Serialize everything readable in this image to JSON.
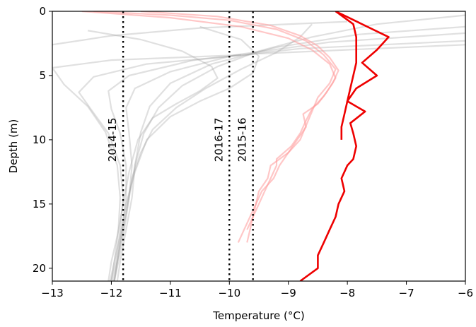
{
  "chart_data": {
    "type": "line",
    "title": "",
    "xlabel": "Temperature (°C)",
    "ylabel": "Depth (m)",
    "xlim": [
      -13,
      -6
    ],
    "ylim": [
      21,
      0
    ],
    "y_inverted": true,
    "xticks": [
      -13,
      -12,
      -11,
      -10,
      -9,
      -8,
      -7,
      -6
    ],
    "xtick_labels": [
      "−13",
      "−12",
      "−11",
      "−10",
      "−9",
      "−8",
      "−7",
      "−6"
    ],
    "yticks": [
      0,
      5,
      10,
      15,
      20
    ],
    "ytick_labels": [
      "0",
      "5",
      "10",
      "15",
      "20"
    ],
    "grid": false,
    "colors": {
      "gray_series": "#a0a0a0",
      "light_red_series": "#ff9999",
      "red_series": "#ee0000",
      "vlines": "#000000"
    },
    "vertical_lines": [
      {
        "x": -11.8,
        "label": "2014-15"
      },
      {
        "x": -10.0,
        "label": "2016-17"
      },
      {
        "x": -9.6,
        "label": "2015-16"
      }
    ],
    "gray_profiles": [
      {
        "points": [
          [
            -12.4,
            1.5
          ],
          [
            -11.5,
            2.2
          ],
          [
            -10.8,
            3.1
          ],
          [
            -10.3,
            4.3
          ],
          [
            -10.2,
            5.2
          ],
          [
            -10.5,
            6.2
          ],
          [
            -10.9,
            7.2
          ],
          [
            -11.3,
            8.3
          ],
          [
            -11.55,
            10
          ],
          [
            -11.7,
            12.5
          ],
          [
            -11.8,
            15
          ],
          [
            -11.9,
            17.5
          ],
          [
            -12.0,
            19.5
          ],
          [
            -12.05,
            21
          ]
        ]
      },
      {
        "points": [
          [
            -10.5,
            1.2
          ],
          [
            -9.8,
            2.2
          ],
          [
            -9.5,
            3.5
          ],
          [
            -9.6,
            4.8
          ],
          [
            -10.0,
            6.0
          ],
          [
            -10.5,
            7.0
          ],
          [
            -11.0,
            8.2
          ],
          [
            -11.4,
            10
          ],
          [
            -11.6,
            12.5
          ],
          [
            -11.75,
            15
          ],
          [
            -11.85,
            17.5
          ],
          [
            -11.95,
            19.5
          ],
          [
            -12.0,
            21
          ]
        ]
      },
      {
        "points": [
          [
            -8.6,
            1.0
          ],
          [
            -8.8,
            2.0
          ],
          [
            -9.2,
            3.2
          ],
          [
            -9.8,
            4.5
          ],
          [
            -10.4,
            6.0
          ],
          [
            -10.9,
            7.5
          ],
          [
            -11.3,
            9.2
          ],
          [
            -11.5,
            11
          ],
          [
            -11.65,
            13
          ],
          [
            -11.75,
            15.5
          ],
          [
            -11.85,
            18
          ],
          [
            -11.95,
            21
          ]
        ]
      },
      {
        "points": [
          [
            -6.0,
            0.3
          ],
          [
            -7.5,
            1.0
          ],
          [
            -8.6,
            2.0
          ],
          [
            -9.5,
            3.1
          ],
          [
            -10.2,
            4.3
          ],
          [
            -10.8,
            5.8
          ],
          [
            -11.2,
            7.5
          ],
          [
            -11.45,
            9.5
          ],
          [
            -11.6,
            12
          ],
          [
            -11.7,
            14.5
          ],
          [
            -11.8,
            17
          ],
          [
            -11.9,
            19.5
          ],
          [
            -11.95,
            21
          ]
        ]
      },
      {
        "points": [
          [
            -6.0,
            1.2
          ],
          [
            -7.8,
            1.8
          ],
          [
            -9.2,
            2.8
          ],
          [
            -10.3,
            4.1
          ],
          [
            -11.0,
            5.6
          ],
          [
            -11.35,
            7.4
          ],
          [
            -11.5,
            9.4
          ],
          [
            -11.6,
            12
          ],
          [
            -11.65,
            14.5
          ],
          [
            -11.75,
            17
          ],
          [
            -11.85,
            19.5
          ],
          [
            -11.9,
            21
          ]
        ]
      },
      {
        "points": [
          [
            -6.0,
            1.7
          ],
          [
            -8.3,
            2.4
          ],
          [
            -9.9,
            3.4
          ],
          [
            -11.0,
            4.7
          ],
          [
            -11.6,
            6.0
          ],
          [
            -11.75,
            7.5
          ],
          [
            -11.7,
            9.5
          ],
          [
            -11.65,
            12
          ],
          [
            -11.7,
            14.5
          ],
          [
            -11.78,
            17
          ],
          [
            -11.88,
            19.5
          ],
          [
            -11.95,
            21
          ]
        ]
      },
      {
        "points": [
          [
            -6.0,
            2.3
          ],
          [
            -8.8,
            2.9
          ],
          [
            -10.6,
            3.8
          ],
          [
            -11.7,
            5.0
          ],
          [
            -12.05,
            6.2
          ],
          [
            -12.0,
            7.6
          ],
          [
            -11.85,
            9.5
          ],
          [
            -11.75,
            12
          ],
          [
            -11.75,
            14.5
          ],
          [
            -11.82,
            17
          ],
          [
            -11.9,
            19.5
          ],
          [
            -11.97,
            21
          ]
        ]
      },
      {
        "points": [
          [
            -6.0,
            2.6
          ],
          [
            -9.5,
            3.3
          ],
          [
            -11.4,
            4.1
          ],
          [
            -12.3,
            5.1
          ],
          [
            -12.55,
            6.3
          ],
          [
            -12.35,
            7.6
          ],
          [
            -12.05,
            9.5
          ],
          [
            -11.85,
            12
          ],
          [
            -11.8,
            14.5
          ],
          [
            -11.85,
            17
          ],
          [
            -11.92,
            19.5
          ],
          [
            -12.0,
            21
          ]
        ]
      },
      {
        "points": [
          [
            -9.8,
            3.4
          ],
          [
            -12.0,
            3.8
          ],
          [
            -13.0,
            4.4
          ],
          [
            -12.8,
            5.7
          ],
          [
            -12.4,
            7.4
          ],
          [
            -12.1,
            9.4
          ],
          [
            -11.9,
            12
          ],
          [
            -11.85,
            14.5
          ],
          [
            -11.88,
            17
          ],
          [
            -11.95,
            19.5
          ],
          [
            -12.02,
            21
          ]
        ]
      },
      {
        "points": [
          [
            -8.0,
            0.8
          ],
          [
            -10.5,
            1.3
          ],
          [
            -12.0,
            1.9
          ],
          [
            -13.0,
            2.6
          ]
        ]
      }
    ],
    "light_red_profiles": [
      {
        "points": [
          [
            -12.3,
            0.0
          ],
          [
            -11.0,
            0.3
          ],
          [
            -10.0,
            0.7
          ],
          [
            -9.2,
            1.4
          ],
          [
            -8.7,
            2.3
          ],
          [
            -8.4,
            3.4
          ],
          [
            -8.2,
            4.5
          ],
          [
            -8.3,
            5.6
          ],
          [
            -8.5,
            6.7
          ],
          [
            -8.6,
            7.8
          ],
          [
            -8.7,
            8.9
          ],
          [
            -8.8,
            10
          ],
          [
            -9.0,
            11
          ],
          [
            -9.3,
            12
          ],
          [
            -9.35,
            13
          ],
          [
            -9.5,
            14
          ],
          [
            -9.55,
            15
          ],
          [
            -9.65,
            16
          ],
          [
            -9.75,
            17
          ],
          [
            -9.85,
            18
          ]
        ]
      },
      {
        "points": [
          [
            -12.5,
            0.0
          ],
          [
            -11.0,
            0.5
          ],
          [
            -9.8,
            1.2
          ],
          [
            -9.0,
            2.1
          ],
          [
            -8.6,
            3.0
          ],
          [
            -8.3,
            4.1
          ],
          [
            -8.2,
            5.2
          ],
          [
            -8.35,
            6.3
          ],
          [
            -8.5,
            7.2
          ],
          [
            -8.75,
            8.0
          ],
          [
            -8.7,
            9.0
          ],
          [
            -8.85,
            10
          ],
          [
            -9.0,
            11
          ],
          [
            -9.15,
            12
          ],
          [
            -9.25,
            13
          ],
          [
            -9.45,
            14
          ],
          [
            -9.55,
            15
          ],
          [
            -9.6,
            16
          ],
          [
            -9.7,
            17
          ]
        ]
      },
      {
        "points": [
          [
            -11.5,
            0.0
          ],
          [
            -10.2,
            0.4
          ],
          [
            -9.3,
            1.1
          ],
          [
            -8.8,
            1.9
          ],
          [
            -8.5,
            2.7
          ],
          [
            -8.3,
            3.6
          ],
          [
            -8.15,
            4.6
          ],
          [
            -8.25,
            5.6
          ],
          [
            -8.4,
            6.6
          ],
          [
            -8.6,
            7.6
          ],
          [
            -8.7,
            8.5
          ],
          [
            -8.8,
            9.5
          ],
          [
            -8.95,
            10.5
          ],
          [
            -9.2,
            11.5
          ],
          [
            -9.2,
            12
          ],
          [
            -9.3,
            13
          ],
          [
            -9.4,
            14
          ],
          [
            -9.5,
            15
          ],
          [
            -9.6,
            16
          ],
          [
            -9.65,
            17
          ],
          [
            -9.7,
            18
          ]
        ]
      }
    ],
    "red_profiles": [
      {
        "points": [
          [
            -8.2,
            0.0
          ],
          [
            -7.3,
            2.0
          ],
          [
            -7.5,
            3.0
          ],
          [
            -7.75,
            4.0
          ],
          [
            -7.5,
            5.0
          ],
          [
            -7.85,
            6.0
          ],
          [
            -8.0,
            7.0
          ],
          [
            -7.7,
            7.8
          ],
          [
            -7.95,
            8.7
          ],
          [
            -7.9,
            9.5
          ],
          [
            -7.85,
            10.5
          ],
          [
            -7.9,
            11.5
          ],
          [
            -8.0,
            12
          ],
          [
            -8.1,
            13
          ],
          [
            -8.05,
            14
          ],
          [
            -8.15,
            15
          ],
          [
            -8.2,
            16
          ],
          [
            -8.3,
            17
          ],
          [
            -8.4,
            18
          ],
          [
            -8.5,
            19
          ],
          [
            -8.5,
            20
          ],
          [
            -8.8,
            21
          ]
        ]
      },
      {
        "points": [
          [
            -8.2,
            0.0
          ],
          [
            -7.9,
            1.0
          ],
          [
            -7.85,
            2.0
          ],
          [
            -7.85,
            3.0
          ],
          [
            -7.85,
            4.0
          ],
          [
            -7.9,
            5.0
          ],
          [
            -7.95,
            6.0
          ],
          [
            -8.0,
            7.0
          ],
          [
            -8.05,
            8.0
          ],
          [
            -8.1,
            9.0
          ],
          [
            -8.1,
            10.0
          ]
        ]
      }
    ]
  }
}
